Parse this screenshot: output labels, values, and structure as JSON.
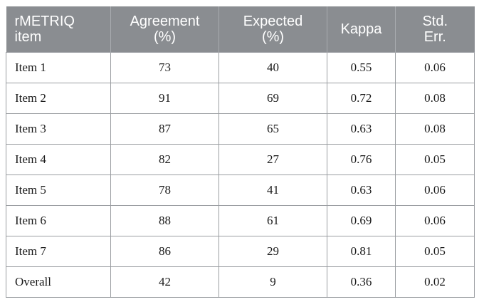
{
  "table": {
    "headers": [
      {
        "line1": "rMETRIQ",
        "line2": "item"
      },
      {
        "line1": "Agreement",
        "line2": "(%)"
      },
      {
        "line1": "Expected",
        "line2": "(%)"
      },
      {
        "line1": "Kappa",
        "line2": ""
      },
      {
        "line1": "Std.",
        "line2": "Err."
      }
    ],
    "rows": [
      {
        "item": "Item 1",
        "agreement": "73",
        "expected": "40",
        "kappa": "0.55",
        "std_err": "0.06"
      },
      {
        "item": "Item 2",
        "agreement": "91",
        "expected": "69",
        "kappa": "0.72",
        "std_err": "0.08"
      },
      {
        "item": "Item 3",
        "agreement": "87",
        "expected": "65",
        "kappa": "0.63",
        "std_err": "0.08"
      },
      {
        "item": "Item 4",
        "agreement": "82",
        "expected": "27",
        "kappa": "0.76",
        "std_err": "0.05"
      },
      {
        "item": "Item 5",
        "agreement": "78",
        "expected": "41",
        "kappa": "0.63",
        "std_err": "0.06"
      },
      {
        "item": "Item 6",
        "agreement": "88",
        "expected": "61",
        "kappa": "0.69",
        "std_err": "0.06"
      },
      {
        "item": "Item 7",
        "agreement": "86",
        "expected": "29",
        "kappa": "0.81",
        "std_err": "0.05"
      },
      {
        "item": "Overall",
        "agreement": "42",
        "expected": "9",
        "kappa": "0.36",
        "std_err": "0.02"
      }
    ]
  },
  "colors": {
    "header_background": "#8a8d91",
    "header_text": "#ffffff",
    "grid_lines": "#9a9da1"
  }
}
